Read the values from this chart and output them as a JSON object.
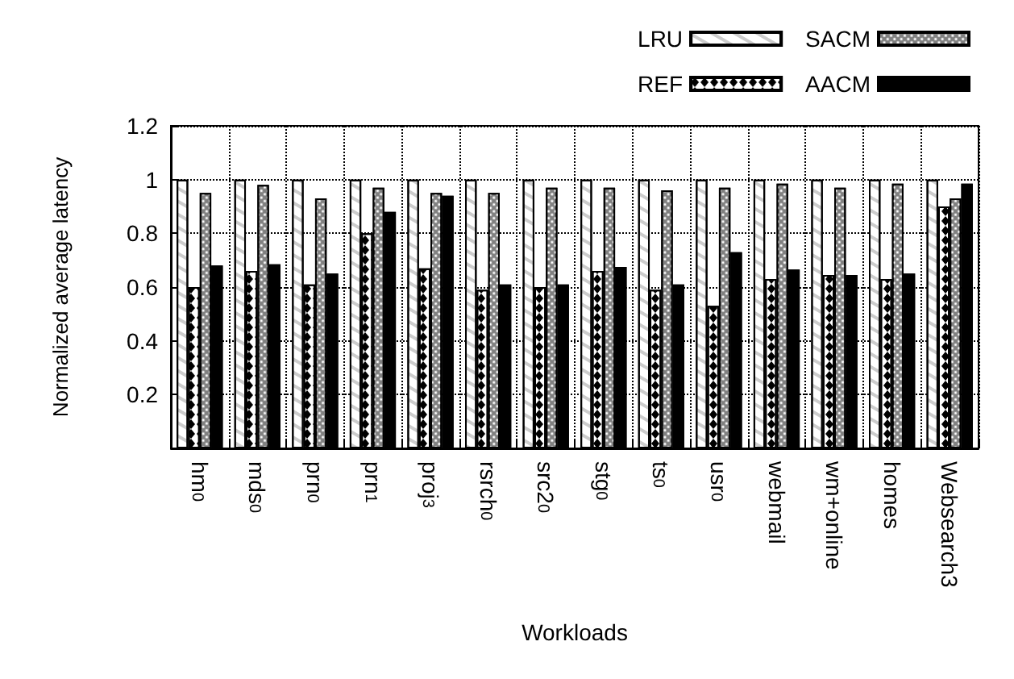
{
  "chart_data": {
    "type": "bar",
    "xlabel": "Workloads",
    "ylabel": "Normalized average latency",
    "categories": [
      "hm$_{0}$",
      "mds$_{0}$",
      "prn$_{0}$",
      "prn$_{1}$",
      "proj$_{3}$",
      "rsrch$_{0}$",
      "src2$_{0}$",
      "stg$_{0}$",
      "ts$_{0}$",
      "usr$_{0}$",
      "webmail",
      "wm+online",
      "homes",
      "Websearch3"
    ],
    "series": [
      {
        "name": "LRU",
        "color": "#ffffff",
        "values": [
          1,
          1,
          1,
          1,
          1,
          1,
          1,
          1,
          1,
          1,
          1,
          1,
          1,
          1
        ]
      },
      {
        "name": "REF",
        "color": "#ffffff",
        "values": [
          0.6,
          0.66,
          0.61,
          0.8,
          0.67,
          0.59,
          0.6,
          0.66,
          0.59,
          0.53,
          0.63,
          0.645,
          0.63,
          0.9
        ]
      },
      {
        "name": "SACM",
        "color": "#808080",
        "values": [
          0.95,
          0.98,
          0.93,
          0.97,
          0.95,
          0.95,
          0.97,
          0.97,
          0.96,
          0.97,
          0.985,
          0.97,
          0.985,
          0.93
        ]
      },
      {
        "name": "AACM",
        "color": "#000000",
        "values": [
          0.68,
          0.685,
          0.65,
          0.88,
          0.94,
          0.61,
          0.61,
          0.675,
          0.61,
          0.73,
          0.665,
          0.645,
          0.65,
          0.985
        ]
      }
    ],
    "ylim": [
      0,
      1.2
    ],
    "yticks": [
      0.2,
      0.4,
      0.6,
      0.8,
      1,
      1.2
    ],
    "grid": true,
    "legend": "top right"
  }
}
